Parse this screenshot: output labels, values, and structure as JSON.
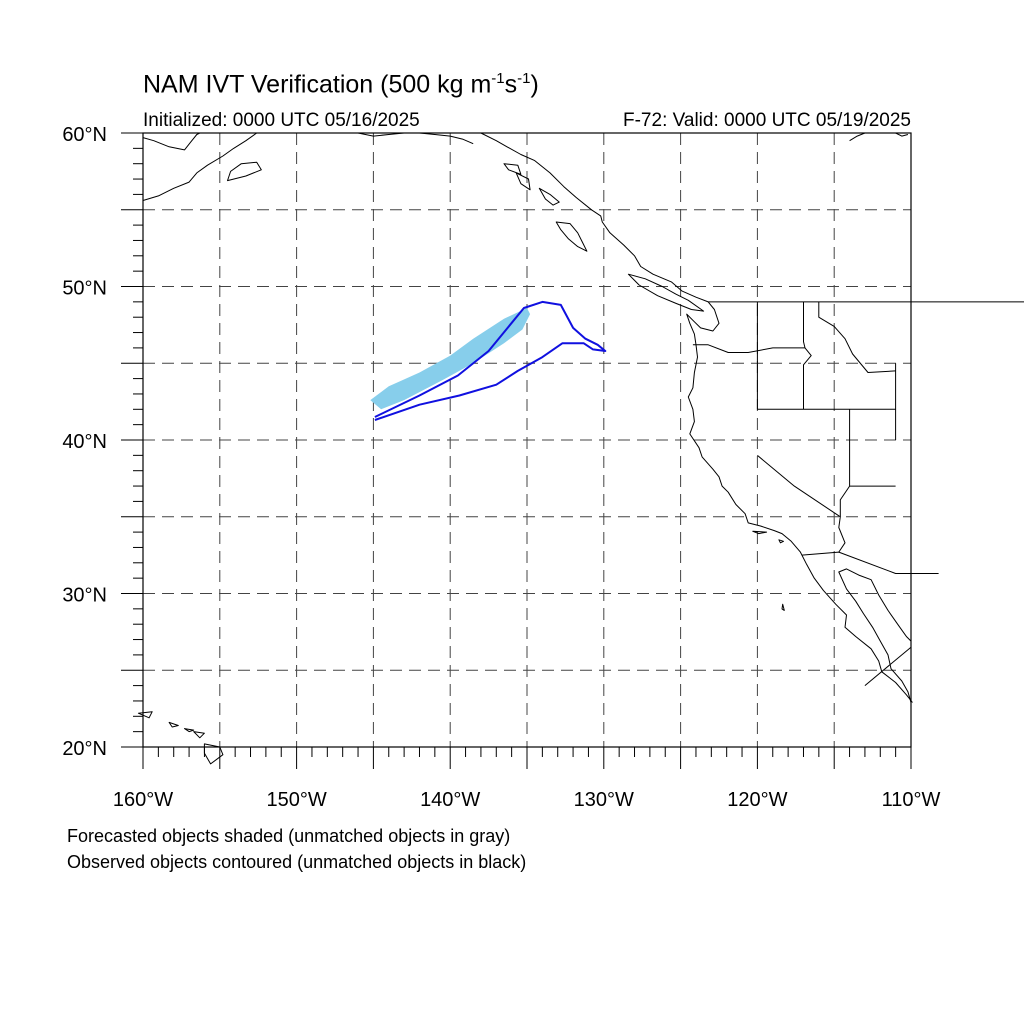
{
  "header": {
    "title_main": "NAM IVT Verification (500 kg m",
    "title_exp1": "-1",
    "title_mid": "s",
    "title_exp2": "-1",
    "title_end": ")",
    "initialized": "Initialized: 0000 UTC 05/16/2025",
    "valid": "F-72: Valid: 0000 UTC 05/19/2025"
  },
  "map": {
    "lon_range": [
      -160,
      -110
    ],
    "lat_range": [
      20,
      60
    ],
    "lat_labels": [
      "60°N",
      "50°N",
      "40°N",
      "30°N",
      "20°N"
    ],
    "lon_labels": [
      "160°W",
      "150°W",
      "140°W",
      "130°W",
      "120°W",
      "110°W"
    ],
    "forecast_color": "#87ceeb",
    "observed_color": "#1010e0",
    "forecast_object": [
      [
        -145.2,
        42.6
      ],
      [
        -144.0,
        43.5
      ],
      [
        -142.0,
        44.4
      ],
      [
        -140.0,
        45.5
      ],
      [
        -138.5,
        46.6
      ],
      [
        -136.5,
        47.9
      ],
      [
        -135.0,
        48.6
      ],
      [
        -134.8,
        48.2
      ],
      [
        -135.3,
        47.2
      ],
      [
        -136.5,
        46.3
      ],
      [
        -138.5,
        45.0
      ],
      [
        -140.5,
        43.9
      ],
      [
        -143.0,
        42.6
      ],
      [
        -144.5,
        42.0
      ]
    ],
    "observed_object": [
      [
        -144.9,
        41.5
      ],
      [
        -142.0,
        42.9
      ],
      [
        -139.5,
        44.2
      ],
      [
        -137.5,
        45.8
      ],
      [
        -135.2,
        48.6
      ],
      [
        -134.0,
        49.0
      ],
      [
        -132.8,
        48.8
      ],
      [
        -132.0,
        47.3
      ],
      [
        -131.2,
        46.6
      ],
      [
        -130.4,
        46.2
      ],
      [
        -129.9,
        45.8
      ],
      [
        -130.7,
        45.9
      ],
      [
        -131.3,
        46.3
      ],
      [
        -132.7,
        46.3
      ],
      [
        -134.0,
        45.4
      ],
      [
        -135.6,
        44.5
      ],
      [
        -137.0,
        43.6
      ],
      [
        -139.4,
        42.9
      ],
      [
        -142.0,
        42.3
      ],
      [
        -144.9,
        41.3
      ]
    ]
  },
  "captions": {
    "line1": "Forecasted objects shaded (unmatched objects in gray)",
    "line2": "Observed objects contoured (unmatched objects in black)"
  }
}
